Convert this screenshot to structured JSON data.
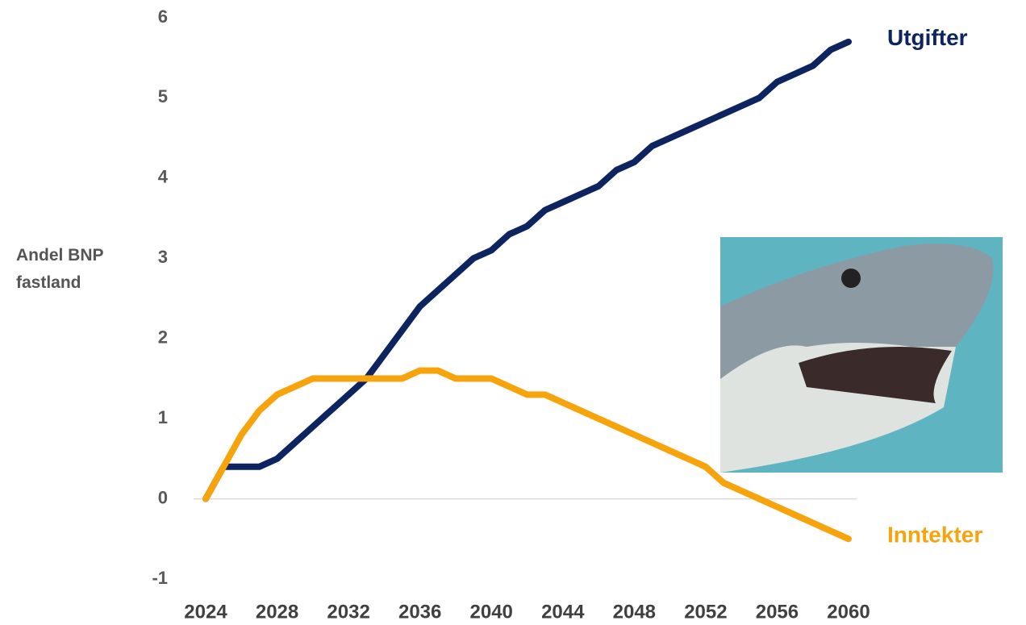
{
  "chart_data": {
    "type": "line",
    "y_label": "Andel BNP fastland",
    "x": [
      2024,
      2025,
      2026,
      2027,
      2028,
      2029,
      2030,
      2031,
      2032,
      2033,
      2034,
      2035,
      2036,
      2037,
      2038,
      2039,
      2040,
      2041,
      2042,
      2043,
      2044,
      2045,
      2046,
      2047,
      2048,
      2049,
      2050,
      2051,
      2052,
      2053,
      2054,
      2055,
      2056,
      2057,
      2058,
      2059,
      2060
    ],
    "series": [
      {
        "name": "Utgifter",
        "color": "#0d2461",
        "values": [
          0,
          0.4,
          0.4,
          0.4,
          0.5,
          0.7,
          0.9,
          1.1,
          1.3,
          1.5,
          1.8,
          2.1,
          2.4,
          2.6,
          2.8,
          3.0,
          3.1,
          3.3,
          3.4,
          3.6,
          3.7,
          3.8,
          3.9,
          4.1,
          4.2,
          4.4,
          4.5,
          4.6,
          4.7,
          4.8,
          4.9,
          5.0,
          5.2,
          5.3,
          5.4,
          5.6,
          5.7
        ]
      },
      {
        "name": "Inntekter",
        "color": "#f7a30c",
        "values": [
          0,
          0.4,
          0.8,
          1.1,
          1.3,
          1.4,
          1.5,
          1.5,
          1.5,
          1.5,
          1.5,
          1.5,
          1.6,
          1.6,
          1.5,
          1.5,
          1.5,
          1.4,
          1.3,
          1.3,
          1.2,
          1.1,
          1.0,
          0.9,
          0.8,
          0.7,
          0.6,
          0.5,
          0.4,
          0.2,
          0.1,
          0.0,
          -0.1,
          -0.2,
          -0.3,
          -0.4,
          -0.5
        ]
      }
    ],
    "xlim": [
      2024,
      2060
    ],
    "xticks": [
      2024,
      2028,
      2032,
      2036,
      2040,
      2044,
      2048,
      2052,
      2056,
      2060
    ],
    "ylim": [
      -1,
      6
    ],
    "yticks": [
      -1,
      0,
      1,
      2,
      3,
      4,
      5,
      6
    ],
    "grid": false
  }
}
